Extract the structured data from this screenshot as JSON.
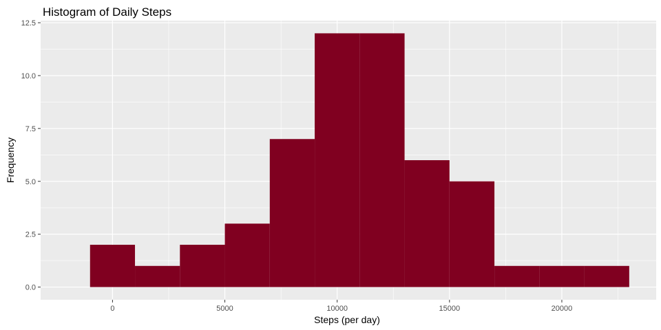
{
  "chart_data": {
    "type": "bar",
    "title": "Histogram of Daily Steps",
    "xlabel": "Steps (per day)",
    "ylabel": "Frequency",
    "bin_width": 2000,
    "bins": [
      {
        "start": -1000,
        "end": 1000,
        "value": 2
      },
      {
        "start": 1000,
        "end": 3000,
        "value": 1
      },
      {
        "start": 3000,
        "end": 5000,
        "value": 2
      },
      {
        "start": 5000,
        "end": 7000,
        "value": 3
      },
      {
        "start": 7000,
        "end": 9000,
        "value": 7
      },
      {
        "start": 9000,
        "end": 11000,
        "value": 12
      },
      {
        "start": 11000,
        "end": 13000,
        "value": 12
      },
      {
        "start": 13000,
        "end": 15000,
        "value": 6
      },
      {
        "start": 15000,
        "end": 17000,
        "value": 5
      },
      {
        "start": 17000,
        "end": 19000,
        "value": 1
      },
      {
        "start": 19000,
        "end": 21000,
        "value": 1
      },
      {
        "start": 21000,
        "end": 23000,
        "value": 1
      }
    ],
    "xlim": [
      -3200,
      24200
    ],
    "ylim": [
      -0.6,
      12.6
    ],
    "x_ticks": [
      0,
      5000,
      10000,
      15000,
      20000
    ],
    "x_tick_labels": [
      "0",
      "5000",
      "10000",
      "15000",
      "20000"
    ],
    "y_ticks": [
      0,
      2.5,
      5,
      7.5,
      10,
      12.5
    ],
    "y_tick_labels": [
      "0.0",
      "2.5",
      "5.0",
      "7.5",
      "10.0",
      "12.5"
    ],
    "grid": true,
    "colors": {
      "fill": "#800020",
      "panel_background": "#ebebeb",
      "grid": "#ffffff",
      "tick_text": "#4d4d4d"
    }
  }
}
